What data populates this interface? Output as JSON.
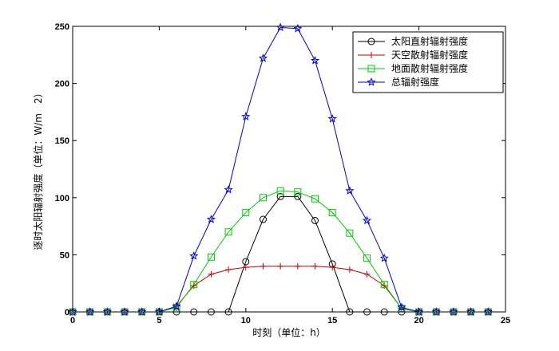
{
  "chart_data": {
    "type": "line",
    "title": "",
    "xlabel": "时刻（单位：h）",
    "ylabel": "逐时太阳辐射强度（单位：W/m　2）",
    "xlim": [
      0,
      25
    ],
    "ylim": [
      0,
      250
    ],
    "xticks": [
      0,
      5,
      10,
      15,
      20,
      25
    ],
    "yticks": [
      0,
      50,
      100,
      150,
      200,
      250
    ],
    "grid": false,
    "legend_position": "top-right",
    "x": [
      0,
      1,
      2,
      3,
      4,
      5,
      6,
      7,
      8,
      9,
      10,
      11,
      12,
      13,
      14,
      15,
      16,
      17,
      18,
      19,
      20,
      21,
      22,
      23,
      24
    ],
    "series": [
      {
        "name": "太阳直射辐射强度",
        "color": "#000000",
        "marker": "circle",
        "values": [
          0,
          0,
          0,
          0,
          0,
          0,
          0,
          0,
          0,
          0,
          44,
          81,
          101,
          101,
          80,
          42,
          0,
          0,
          0,
          0,
          0,
          0,
          0,
          0,
          0
        ]
      },
      {
        "name": "天空散射辐射强度",
        "color": "#cc0000",
        "marker": "plus",
        "values": [
          0,
          0,
          0,
          0,
          0,
          0,
          5,
          23,
          33,
          37,
          39,
          40,
          40,
          40,
          40,
          39,
          37,
          33,
          23,
          3,
          0,
          0,
          0,
          0,
          0
        ]
      },
      {
        "name": "地面散射辐射强度",
        "color": "#00cc00",
        "marker": "square",
        "values": [
          0,
          0,
          0,
          0,
          0,
          0,
          4,
          24,
          48,
          70,
          87,
          100,
          106,
          105,
          99,
          87,
          69,
          47,
          24,
          3,
          0,
          0,
          0,
          0,
          0
        ]
      },
      {
        "name": "总辐射强度",
        "color": "#0000cc",
        "marker": "star",
        "values": [
          0,
          0,
          0,
          0,
          0,
          0,
          5,
          49,
          81,
          107,
          171,
          222,
          249,
          248,
          220,
          169,
          106,
          80,
          47,
          4,
          0,
          0,
          0,
          0,
          0
        ]
      }
    ]
  }
}
